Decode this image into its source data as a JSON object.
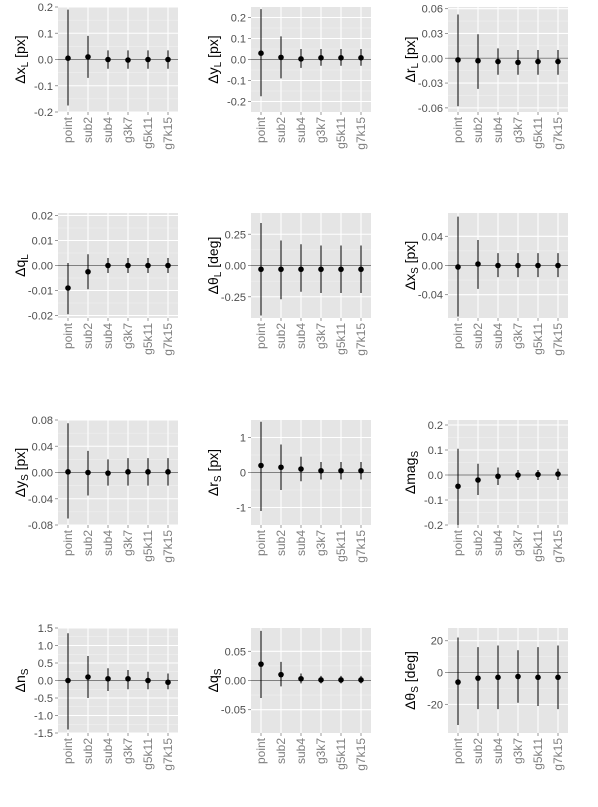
{
  "chart_data": [
    {
      "type": "errorbar",
      "ylabel": {
        "main": "Δx",
        "sub": "L",
        "suffix": " [px]"
      },
      "categories": [
        "point",
        "sub2",
        "sub4",
        "g3k7",
        "g5k11",
        "g7k15"
      ],
      "values": [
        0.005,
        0.01,
        0.0,
        -0.002,
        0.0,
        0.0
      ],
      "lower": [
        -0.175,
        -0.07,
        -0.035,
        -0.035,
        -0.035,
        -0.035
      ],
      "upper": [
        0.19,
        0.09,
        0.035,
        0.035,
        0.035,
        0.035
      ],
      "ylim": [
        -0.2,
        0.2
      ],
      "yticks": [
        -0.2,
        -0.1,
        0.0,
        0.1,
        0.2
      ],
      "yticklabels": [
        "-0.2",
        "-0.1",
        "0.0",
        "0.1",
        "0.2"
      ]
    },
    {
      "type": "errorbar",
      "ylabel": {
        "main": "Δy",
        "sub": "L",
        "suffix": " [px]"
      },
      "categories": [
        "point",
        "sub2",
        "sub4",
        "g3k7",
        "g5k11",
        "g7k15"
      ],
      "values": [
        0.03,
        0.01,
        0.003,
        0.008,
        0.008,
        0.008
      ],
      "lower": [
        -0.175,
        -0.09,
        -0.04,
        -0.03,
        -0.03,
        -0.03
      ],
      "upper": [
        0.24,
        0.11,
        0.05,
        0.05,
        0.05,
        0.05
      ],
      "ylim": [
        -0.25,
        0.25
      ],
      "yticks": [
        -0.2,
        -0.1,
        0.0,
        0.1,
        0.2
      ],
      "yticklabels": [
        "-0.2",
        "-0.1",
        "0.0",
        "0.1",
        "0.2"
      ]
    },
    {
      "type": "errorbar",
      "ylabel": {
        "main": "Δr",
        "sub": "L",
        "suffix": " [px]"
      },
      "categories": [
        "point",
        "sub2",
        "sub4",
        "g3k7",
        "g5k11",
        "g7k15"
      ],
      "values": [
        -0.002,
        -0.003,
        -0.004,
        -0.005,
        -0.004,
        -0.004
      ],
      "lower": [
        -0.058,
        -0.037,
        -0.02,
        -0.02,
        -0.02,
        -0.02
      ],
      "upper": [
        0.053,
        0.029,
        0.012,
        0.01,
        0.01,
        0.01
      ],
      "ylim": [
        -0.065,
        0.062
      ],
      "yticks": [
        -0.06,
        -0.03,
        0.0,
        0.03,
        0.06
      ],
      "yticklabels": [
        "-0.06",
        "-0.03",
        "0.00",
        "0.03",
        "0.06"
      ]
    },
    {
      "type": "errorbar",
      "ylabel": {
        "main": "Δq",
        "sub": "L",
        "suffix": ""
      },
      "categories": [
        "point",
        "sub2",
        "sub4",
        "g3k7",
        "g5k11",
        "g7k15"
      ],
      "values": [
        -0.009,
        -0.0025,
        0.0,
        0.0,
        0.0,
        0.0
      ],
      "lower": [
        -0.0195,
        -0.0095,
        -0.003,
        -0.003,
        -0.003,
        -0.003
      ],
      "upper": [
        0.001,
        0.0045,
        0.003,
        0.003,
        0.003,
        0.003
      ],
      "ylim": [
        -0.021,
        0.021
      ],
      "yticks": [
        -0.02,
        -0.01,
        0.0,
        0.01,
        0.02
      ],
      "yticklabels": [
        "-0.02",
        "-0.01",
        "0.00",
        "0.01",
        "0.02"
      ]
    },
    {
      "type": "errorbar",
      "ylabel": {
        "main": "Δθ",
        "sub": "L",
        "suffix": " [deg]"
      },
      "categories": [
        "point",
        "sub2",
        "sub4",
        "g3k7",
        "g5k11",
        "g7k15"
      ],
      "values": [
        -0.03,
        -0.03,
        -0.03,
        -0.03,
        -0.03,
        -0.03
      ],
      "lower": [
        -0.4,
        -0.27,
        -0.21,
        -0.22,
        -0.22,
        -0.22
      ],
      "upper": [
        0.34,
        0.2,
        0.17,
        0.16,
        0.16,
        0.16
      ],
      "ylim": [
        -0.42,
        0.42
      ],
      "yticks": [
        -0.25,
        0.0,
        0.25
      ],
      "yticklabels": [
        "-0.25",
        "0.00",
        "0.25"
      ]
    },
    {
      "type": "errorbar",
      "ylabel": {
        "main": "Δx",
        "sub": "S",
        "suffix": " [px]"
      },
      "categories": [
        "point",
        "sub2",
        "sub4",
        "g3k7",
        "g5k11",
        "g7k15"
      ],
      "values": [
        -0.002,
        0.002,
        0.0,
        0.0,
        0.0,
        0.0
      ],
      "lower": [
        -0.07,
        -0.032,
        -0.016,
        -0.016,
        -0.016,
        -0.016
      ],
      "upper": [
        0.067,
        0.035,
        0.017,
        0.017,
        0.017,
        0.017
      ],
      "ylim": [
        -0.072,
        0.072
      ],
      "yticks": [
        -0.04,
        0.0,
        0.04
      ],
      "yticklabels": [
        "-0.04",
        "0.00",
        "0.04"
      ]
    },
    {
      "type": "errorbar",
      "ylabel": {
        "main": "Δy",
        "sub": "S",
        "suffix": " [px]"
      },
      "categories": [
        "point",
        "sub2",
        "sub4",
        "g3k7",
        "g5k11",
        "g7k15"
      ],
      "values": [
        0.001,
        0.0,
        -0.001,
        0.001,
        0.001,
        0.001
      ],
      "lower": [
        -0.07,
        -0.035,
        -0.02,
        -0.02,
        -0.02,
        -0.02
      ],
      "upper": [
        0.075,
        0.033,
        0.02,
        0.022,
        0.022,
        0.022
      ],
      "ylim": [
        -0.08,
        0.08
      ],
      "yticks": [
        -0.08,
        -0.04,
        0.0,
        0.04,
        0.08
      ],
      "yticklabels": [
        "-0.08",
        "-0.04",
        "0.00",
        "0.04",
        "0.08"
      ]
    },
    {
      "type": "errorbar",
      "ylabel": {
        "main": "Δr",
        "sub": "S",
        "suffix": " [px]"
      },
      "categories": [
        "point",
        "sub2",
        "sub4",
        "g3k7",
        "g5k11",
        "g7k15"
      ],
      "values": [
        0.2,
        0.15,
        0.1,
        0.05,
        0.05,
        0.05
      ],
      "lower": [
        -1.1,
        -0.5,
        -0.25,
        -0.2,
        -0.2,
        -0.2
      ],
      "upper": [
        1.45,
        0.8,
        0.45,
        0.3,
        0.3,
        0.3
      ],
      "ylim": [
        -1.5,
        1.5
      ],
      "yticks": [
        -1,
        0,
        1
      ],
      "yticklabels": [
        "-1",
        "0",
        "1"
      ]
    },
    {
      "type": "errorbar",
      "ylabel": {
        "main": "Δmag",
        "sub": "S",
        "suffix": ""
      },
      "categories": [
        "point",
        "sub2",
        "sub4",
        "g3k7",
        "g5k11",
        "g7k15"
      ],
      "values": [
        -0.045,
        -0.02,
        -0.005,
        0.0,
        0.002,
        0.004
      ],
      "lower": [
        -0.2,
        -0.08,
        -0.04,
        -0.02,
        -0.02,
        -0.02
      ],
      "upper": [
        0.105,
        0.045,
        0.03,
        0.02,
        0.02,
        0.025
      ],
      "ylim": [
        -0.2,
        0.22
      ],
      "yticks": [
        -0.2,
        -0.1,
        0.0,
        0.1,
        0.2
      ],
      "yticklabels": [
        "-0.2",
        "-0.1",
        "0.0",
        "0.1",
        "0.2"
      ]
    },
    {
      "type": "errorbar",
      "ylabel": {
        "main": "Δn",
        "sub": "S",
        "suffix": ""
      },
      "categories": [
        "point",
        "sub2",
        "sub4",
        "g3k7",
        "g5k11",
        "g7k15"
      ],
      "values": [
        0.0,
        0.1,
        0.05,
        0.05,
        0.0,
        -0.05
      ],
      "lower": [
        -1.4,
        -0.5,
        -0.3,
        -0.25,
        -0.25,
        -0.25
      ],
      "upper": [
        1.35,
        0.7,
        0.35,
        0.3,
        0.25,
        0.2
      ],
      "ylim": [
        -1.5,
        1.5
      ],
      "yticks": [
        -1.5,
        -1.0,
        -0.5,
        0.0,
        0.5,
        1.0,
        1.5
      ],
      "yticklabels": [
        "-1.5",
        "-1.0",
        "-0.5",
        "0.0",
        "0.5",
        "1.0",
        "1.5"
      ]
    },
    {
      "type": "errorbar",
      "ylabel": {
        "main": "Δq",
        "sub": "S",
        "suffix": ""
      },
      "categories": [
        "point",
        "sub2",
        "sub4",
        "g3k7",
        "g5k11",
        "g7k15"
      ],
      "values": [
        0.028,
        0.01,
        0.003,
        0.001,
        0.001,
        0.001
      ],
      "lower": [
        -0.03,
        -0.01,
        -0.005,
        -0.005,
        -0.005,
        -0.005
      ],
      "upper": [
        0.085,
        0.032,
        0.012,
        0.008,
        0.008,
        0.008
      ],
      "ylim": [
        -0.09,
        0.09
      ],
      "yticks": [
        -0.05,
        0.0,
        0.05
      ],
      "yticklabels": [
        "-0.05",
        "0.00",
        "0.05"
      ]
    },
    {
      "type": "errorbar",
      "ylabel": {
        "main": "Δθ",
        "sub": "S",
        "suffix": " [deg]"
      },
      "categories": [
        "point",
        "sub2",
        "sub4",
        "g3k7",
        "g5k11",
        "g7k15"
      ],
      "values": [
        -6.0,
        -3.5,
        -3.0,
        -2.5,
        -3.0,
        -3.0
      ],
      "lower": [
        -33.0,
        -23.0,
        -23.0,
        -19.0,
        -21.0,
        -23.0
      ],
      "upper": [
        22.0,
        16.0,
        17.0,
        14.0,
        16.0,
        17.0
      ],
      "ylim": [
        -38,
        28
      ],
      "yticks": [
        -20,
        0,
        20
      ],
      "yticklabels": [
        "-20",
        "0",
        "20"
      ]
    }
  ]
}
